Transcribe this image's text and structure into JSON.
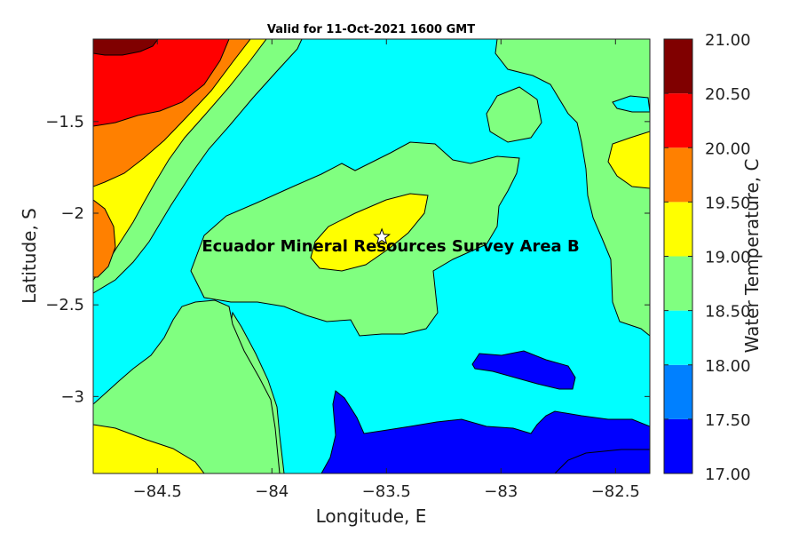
{
  "chart_data": {
    "type": "contour-map",
    "title": "Valid for 11-Oct-2021 1600 GMT",
    "xlabel": "Longitude, E",
    "ylabel": "Latitude, S",
    "colorbar_label": "Water Temperature, C",
    "xlim": [
      -84.78,
      -82.35
    ],
    "ylim": [
      -3.42,
      -1.05
    ],
    "xticks": [
      -84.5,
      -84,
      -83.5,
      -83,
      -82.5
    ],
    "yticks": [
      -1.5,
      -2,
      -2.5,
      -3
    ],
    "xtick_labels": [
      "−84.5",
      "−84",
      "−83.5",
      "−83",
      "−82.5"
    ],
    "ytick_labels": [
      "−1.5",
      "−2",
      "−2.5",
      "−3"
    ],
    "levels": [
      17.0,
      17.5,
      18.0,
      18.5,
      19.0,
      19.5,
      20.0,
      20.5,
      21.0
    ],
    "level_labels": [
      "17.00",
      "17.50",
      "18.00",
      "18.50",
      "19.00",
      "19.50",
      "20.00",
      "20.50",
      "21.00"
    ],
    "level_colors": [
      "#0000ff",
      "#0080ff",
      "#00ffff",
      "#80ff80",
      "#ffff00",
      "#ff8000",
      "#ff0000",
      "#800000"
    ],
    "annotation": {
      "text": "Ecuador Mineral Resources Survey Area B",
      "marker": "star",
      "lon": -83.52,
      "lat": -2.13
    }
  }
}
